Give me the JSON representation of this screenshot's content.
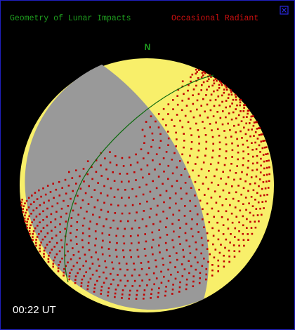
{
  "header": {
    "title": "Geometry of Lunar Impacts",
    "mode": "Occasional Radiant"
  },
  "globe": {
    "north_label": "N"
  },
  "footer": {
    "time": "00:22 UT"
  }
}
